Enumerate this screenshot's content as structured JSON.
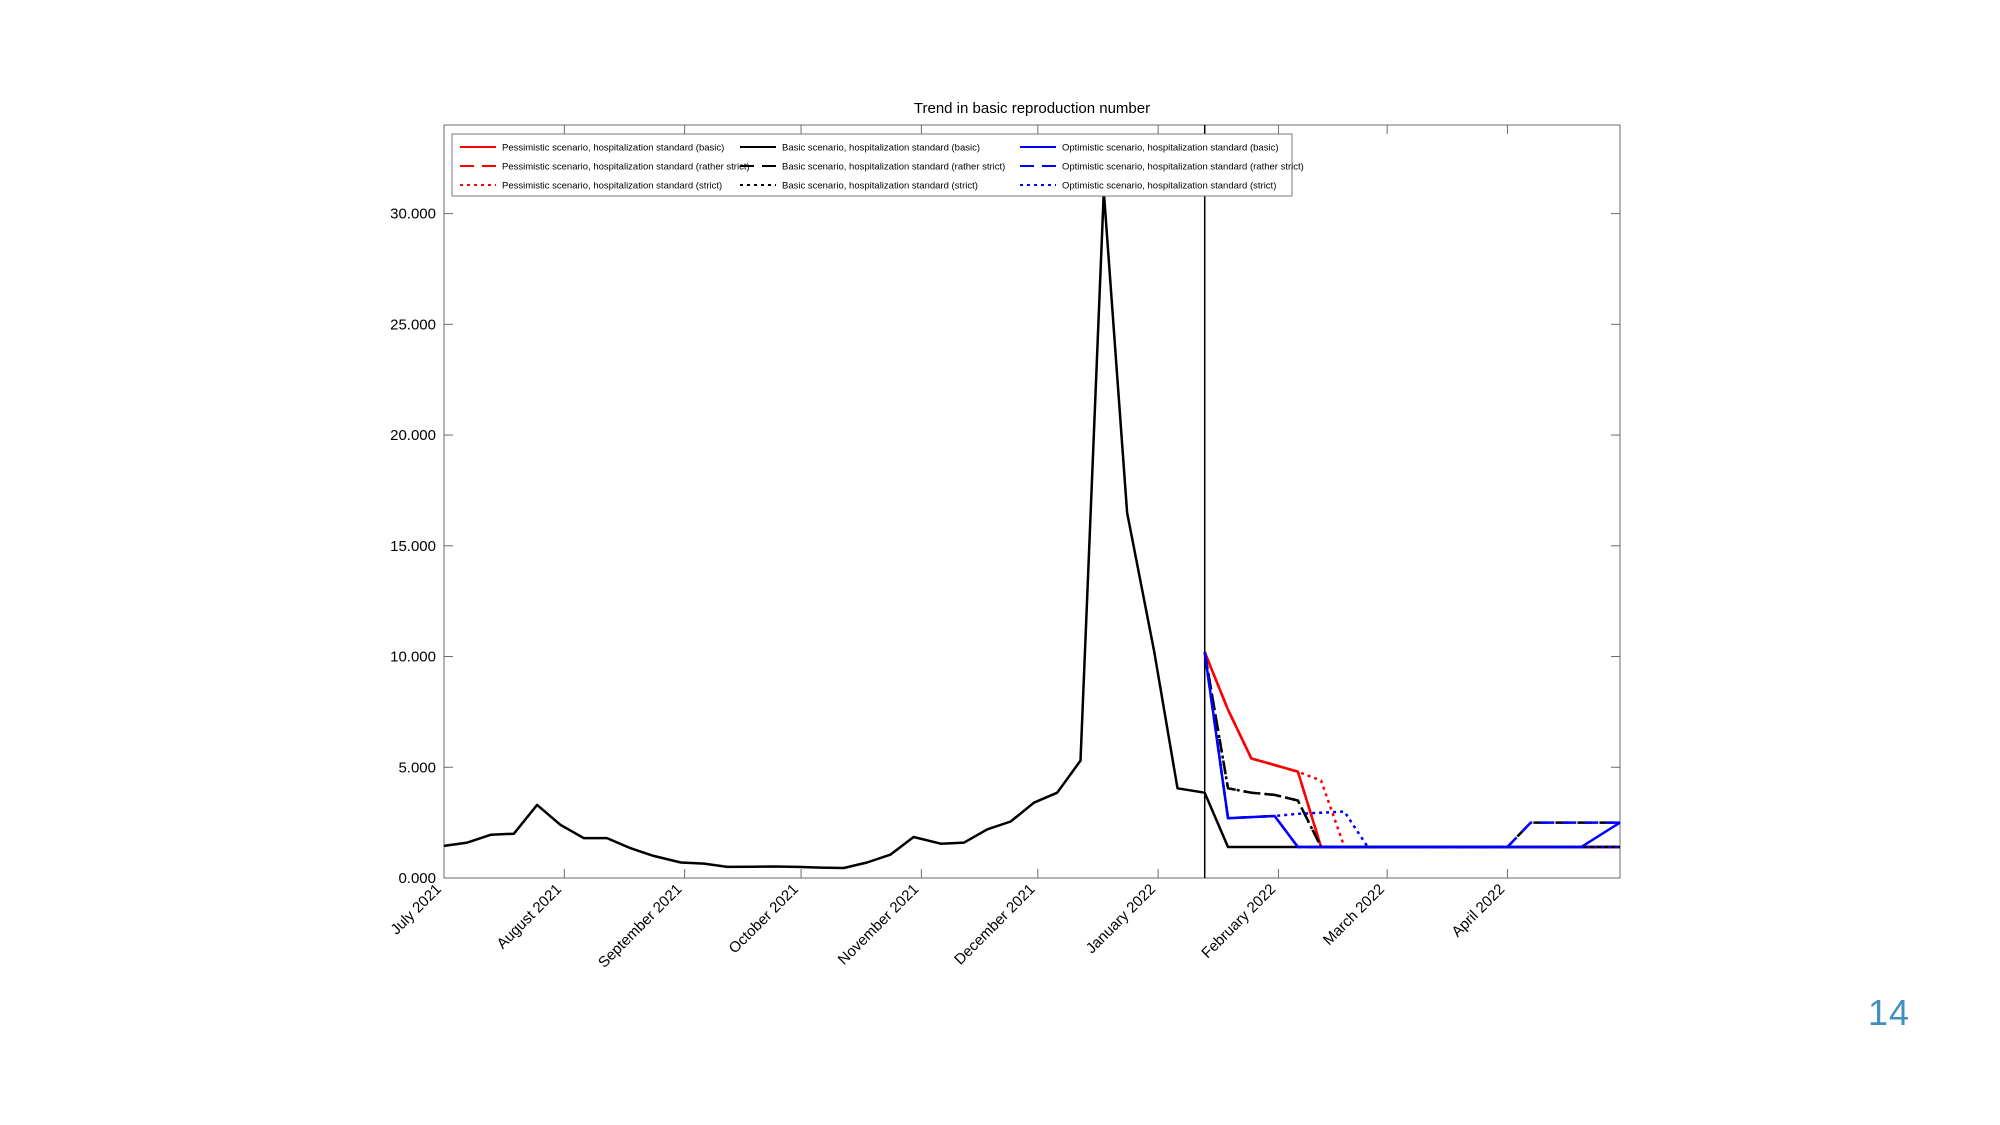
{
  "slide": {
    "page_number": "14"
  },
  "chart_data": {
    "type": "line",
    "title": "Trend in basic reproduction number",
    "xlabel": "",
    "ylabel": "",
    "xlim": [
      "2021-07-01",
      "2022-04-30"
    ],
    "ylim": [
      0,
      34000
    ],
    "yticks": [
      0,
      5000,
      10000,
      15000,
      20000,
      25000,
      30000
    ],
    "ytick_labels": [
      "0.000",
      "5.000",
      "10.000",
      "15.000",
      "20.000",
      "25.000",
      "30.000"
    ],
    "xticks": [
      "2021-07-01",
      "2021-08-01",
      "2021-09-01",
      "2021-10-01",
      "2021-11-01",
      "2021-12-01",
      "2022-01-01",
      "2022-02-01",
      "2022-03-01",
      "2022-04-01"
    ],
    "xtick_labels": [
      "July 2021",
      "August 2021",
      "September 2021",
      "October 2021",
      "November 2021",
      "December 2021",
      "January 2022",
      "February 2022",
      "March 2022",
      "April 2022"
    ],
    "vline": "2022-01-13",
    "grid": false,
    "legend_position": "top-left",
    "legend_columns": 3,
    "series": [
      {
        "name": "Pessimistic scenario, hospitalization standard (basic)",
        "color": "#ff0000",
        "dash": "solid",
        "x": [
          "2022-01-13",
          "2022-01-19",
          "2022-01-25",
          "2022-01-31",
          "2022-02-06",
          "2022-02-12",
          "2022-02-18",
          "2022-03-01",
          "2022-04-01",
          "2022-04-30"
        ],
        "y": [
          10200,
          7600,
          5400,
          5100,
          4800,
          1400,
          1400,
          1400,
          1400,
          1400
        ]
      },
      {
        "name": "Pessimistic scenario, hospitalization standard (rather strict)",
        "color": "#ff0000",
        "dash": "dashed",
        "x": [
          "2022-01-13",
          "2022-01-19",
          "2022-01-25",
          "2022-01-31",
          "2022-02-06",
          "2022-02-12",
          "2022-02-18",
          "2022-03-01",
          "2022-04-01",
          "2022-04-30"
        ],
        "y": [
          10200,
          7600,
          5400,
          5100,
          4800,
          1400,
          1400,
          1400,
          1400,
          1400
        ]
      },
      {
        "name": "Pessimistic scenario, hospitalization standard (strict)",
        "color": "#ff0000",
        "dash": "dotted",
        "x": [
          "2022-01-13",
          "2022-01-19",
          "2022-01-25",
          "2022-01-31",
          "2022-02-06",
          "2022-02-12",
          "2022-02-18",
          "2022-03-01",
          "2022-04-01",
          "2022-04-30"
        ],
        "y": [
          10200,
          7600,
          5400,
          5100,
          4800,
          4400,
          1400,
          1400,
          1400,
          1400
        ]
      },
      {
        "name": "Basic scenario, hospitalization standard (basic)",
        "color": "#000000",
        "dash": "solid",
        "x": [
          "2021-07-01",
          "2021-07-07",
          "2021-07-13",
          "2021-07-19",
          "2021-07-25",
          "2021-07-31",
          "2021-08-06",
          "2021-08-12",
          "2021-08-18",
          "2021-08-24",
          "2021-08-31",
          "2021-09-06",
          "2021-09-12",
          "2021-09-18",
          "2021-09-24",
          "2021-09-30",
          "2021-10-06",
          "2021-10-12",
          "2021-10-18",
          "2021-10-24",
          "2021-10-30",
          "2021-11-06",
          "2021-11-12",
          "2021-11-18",
          "2021-11-24",
          "2021-11-30",
          "2021-12-06",
          "2021-12-12",
          "2021-12-18",
          "2021-12-24",
          "2021-12-31",
          "2022-01-06",
          "2022-01-13",
          "2022-01-19",
          "2022-01-25",
          "2022-01-31",
          "2022-02-06",
          "2022-03-01",
          "2022-04-01",
          "2022-04-30"
        ],
        "y": [
          1450,
          1600,
          1950,
          2000,
          3300,
          2400,
          1800,
          1800,
          1350,
          1000,
          700,
          650,
          500,
          510,
          520,
          500,
          470,
          450,
          700,
          1050,
          1850,
          1550,
          1600,
          2200,
          2550,
          3400,
          3850,
          5300,
          31000,
          16500,
          10200,
          4050,
          3850,
          1400,
          1400,
          1400,
          1400,
          1400,
          1400,
          1400
        ]
      },
      {
        "name": "Basic scenario, hospitalization standard (rather strict)",
        "color": "#000000",
        "dash": "dashed",
        "x": [
          "2022-01-13",
          "2022-01-19",
          "2022-01-25",
          "2022-01-31",
          "2022-02-06",
          "2022-02-12",
          "2022-03-01",
          "2022-04-01",
          "2022-04-07",
          "2022-04-13",
          "2022-04-30"
        ],
        "y": [
          10200,
          4050,
          3850,
          3750,
          3500,
          1400,
          1400,
          1400,
          2500,
          2500,
          2500
        ]
      },
      {
        "name": "Basic scenario, hospitalization standard (strict)",
        "color": "#000000",
        "dash": "dotted",
        "x": [
          "2022-01-13",
          "2022-01-19",
          "2022-01-25",
          "2022-01-31",
          "2022-02-06",
          "2022-02-12",
          "2022-03-01",
          "2022-04-01",
          "2022-04-30"
        ],
        "y": [
          10200,
          4050,
          3850,
          3750,
          3500,
          1400,
          1400,
          1400,
          1400
        ]
      },
      {
        "name": "Optimistic scenario, hospitalization standard (basic)",
        "color": "#0000ff",
        "dash": "solid",
        "x": [
          "2022-01-13",
          "2022-01-19",
          "2022-01-25",
          "2022-01-31",
          "2022-02-06",
          "2022-03-01",
          "2022-04-01",
          "2022-04-20",
          "2022-04-30"
        ],
        "y": [
          10200,
          2700,
          2750,
          2800,
          1400,
          1400,
          1400,
          1400,
          2500
        ]
      },
      {
        "name": "Optimistic scenario, hospitalization standard (rather strict)",
        "color": "#0000ff",
        "dash": "dashed",
        "x": [
          "2022-01-13",
          "2022-01-19",
          "2022-01-25",
          "2022-01-31",
          "2022-02-06",
          "2022-03-01",
          "2022-04-01",
          "2022-04-07",
          "2022-04-13",
          "2022-04-30"
        ],
        "y": [
          10200,
          2700,
          2750,
          2800,
          1400,
          1400,
          1400,
          2500,
          2500,
          2500
        ]
      },
      {
        "name": "Optimistic scenario, hospitalization standard (strict)",
        "color": "#0000ff",
        "dash": "dotted",
        "x": [
          "2022-01-13",
          "2022-01-19",
          "2022-01-25",
          "2022-01-31",
          "2022-02-06",
          "2022-02-12",
          "2022-02-18",
          "2022-02-24",
          "2022-03-01",
          "2022-04-01",
          "2022-04-30"
        ],
        "y": [
          10200,
          2700,
          2750,
          2800,
          2900,
          2950,
          3000,
          1400,
          1400,
          1400,
          1400
        ]
      }
    ]
  }
}
